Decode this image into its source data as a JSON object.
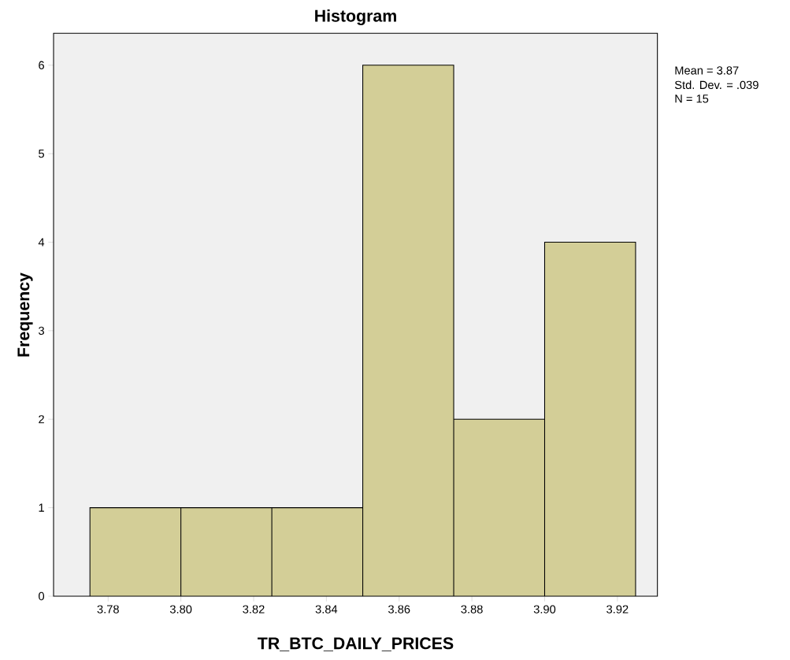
{
  "chart_data": {
    "type": "histogram",
    "title": "Histogram",
    "xlabel": "TR_BTC_DAILY_PRICES",
    "ylabel": "Frequency",
    "bins": [
      3.775,
      3.8,
      3.825,
      3.85,
      3.875,
      3.9,
      3.925
    ],
    "values": [
      1,
      1,
      1,
      6,
      2,
      4
    ],
    "color": "#d3ce97",
    "xlim": [
      3.765,
      3.931
    ],
    "ylim": [
      0,
      6.36
    ],
    "xticks": [
      {
        "value": 3.78,
        "label": "3.78"
      },
      {
        "value": 3.8,
        "label": "3.80"
      },
      {
        "value": 3.82,
        "label": "3.82"
      },
      {
        "value": 3.84,
        "label": "3.84"
      },
      {
        "value": 3.86,
        "label": "3.86"
      },
      {
        "value": 3.88,
        "label": "3.88"
      },
      {
        "value": 3.9,
        "label": "3.90"
      },
      {
        "value": 3.92,
        "label": "3.92"
      }
    ],
    "yticks": [
      0,
      1,
      2,
      3,
      4,
      5,
      6
    ],
    "annotations": [
      "Mean = 3.87",
      "Std. Dev. = .039",
      "N = 15"
    ]
  }
}
